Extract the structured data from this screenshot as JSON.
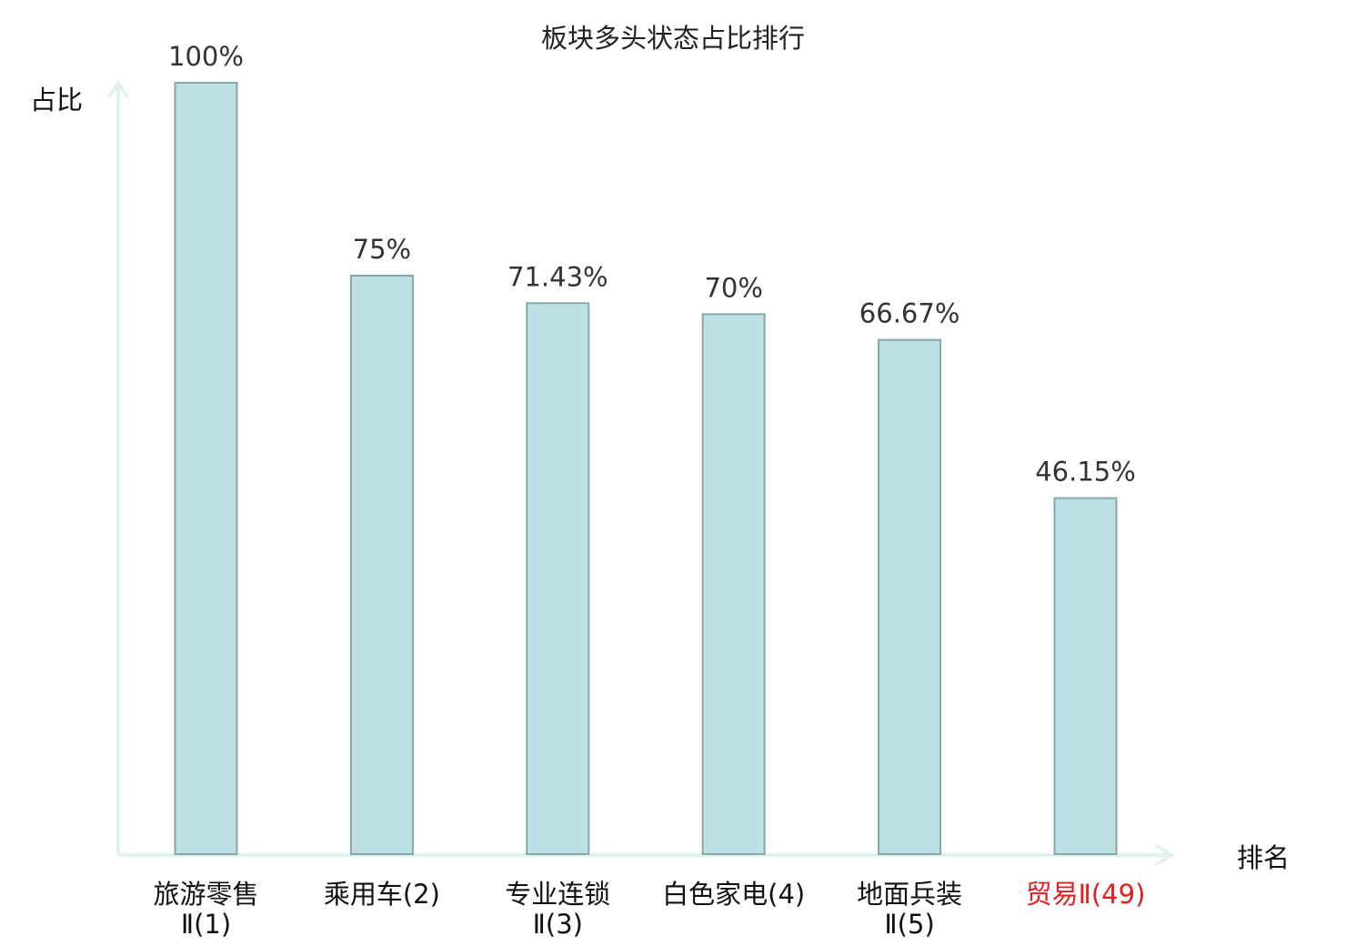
{
  "chart_data": {
    "type": "bar",
    "title": "板块多头状态占比排行",
    "ylabel": "占比",
    "xlabel": "排名",
    "ylim": [
      0,
      100
    ],
    "grid": false,
    "legend": "none",
    "unit": "%",
    "categories": [
      {
        "lines": [
          "旅游零售",
          "Ⅱ(1)"
        ],
        "highlight": false
      },
      {
        "lines": [
          "乘用车(2)"
        ],
        "highlight": false
      },
      {
        "lines": [
          "专业连锁",
          "Ⅱ(3)"
        ],
        "highlight": false
      },
      {
        "lines": [
          "白色家电(4)"
        ],
        "highlight": false
      },
      {
        "lines": [
          "地面兵装",
          "Ⅱ(5)"
        ],
        "highlight": false
      },
      {
        "lines": [
          "贸易Ⅱ(49)"
        ],
        "highlight": true
      }
    ],
    "values": [
      100,
      75,
      71.43,
      70,
      66.67,
      46.15
    ],
    "value_labels": [
      "100%",
      "75%",
      "71.43%",
      "70%",
      "66.67%",
      "46.15%"
    ],
    "colors": {
      "bar_fill": "#bce0e3",
      "bar_stroke": "#86a8ab",
      "axis": "#e0f2ef",
      "label_normal": "#111111",
      "label_highlight": "#e0201e"
    }
  }
}
